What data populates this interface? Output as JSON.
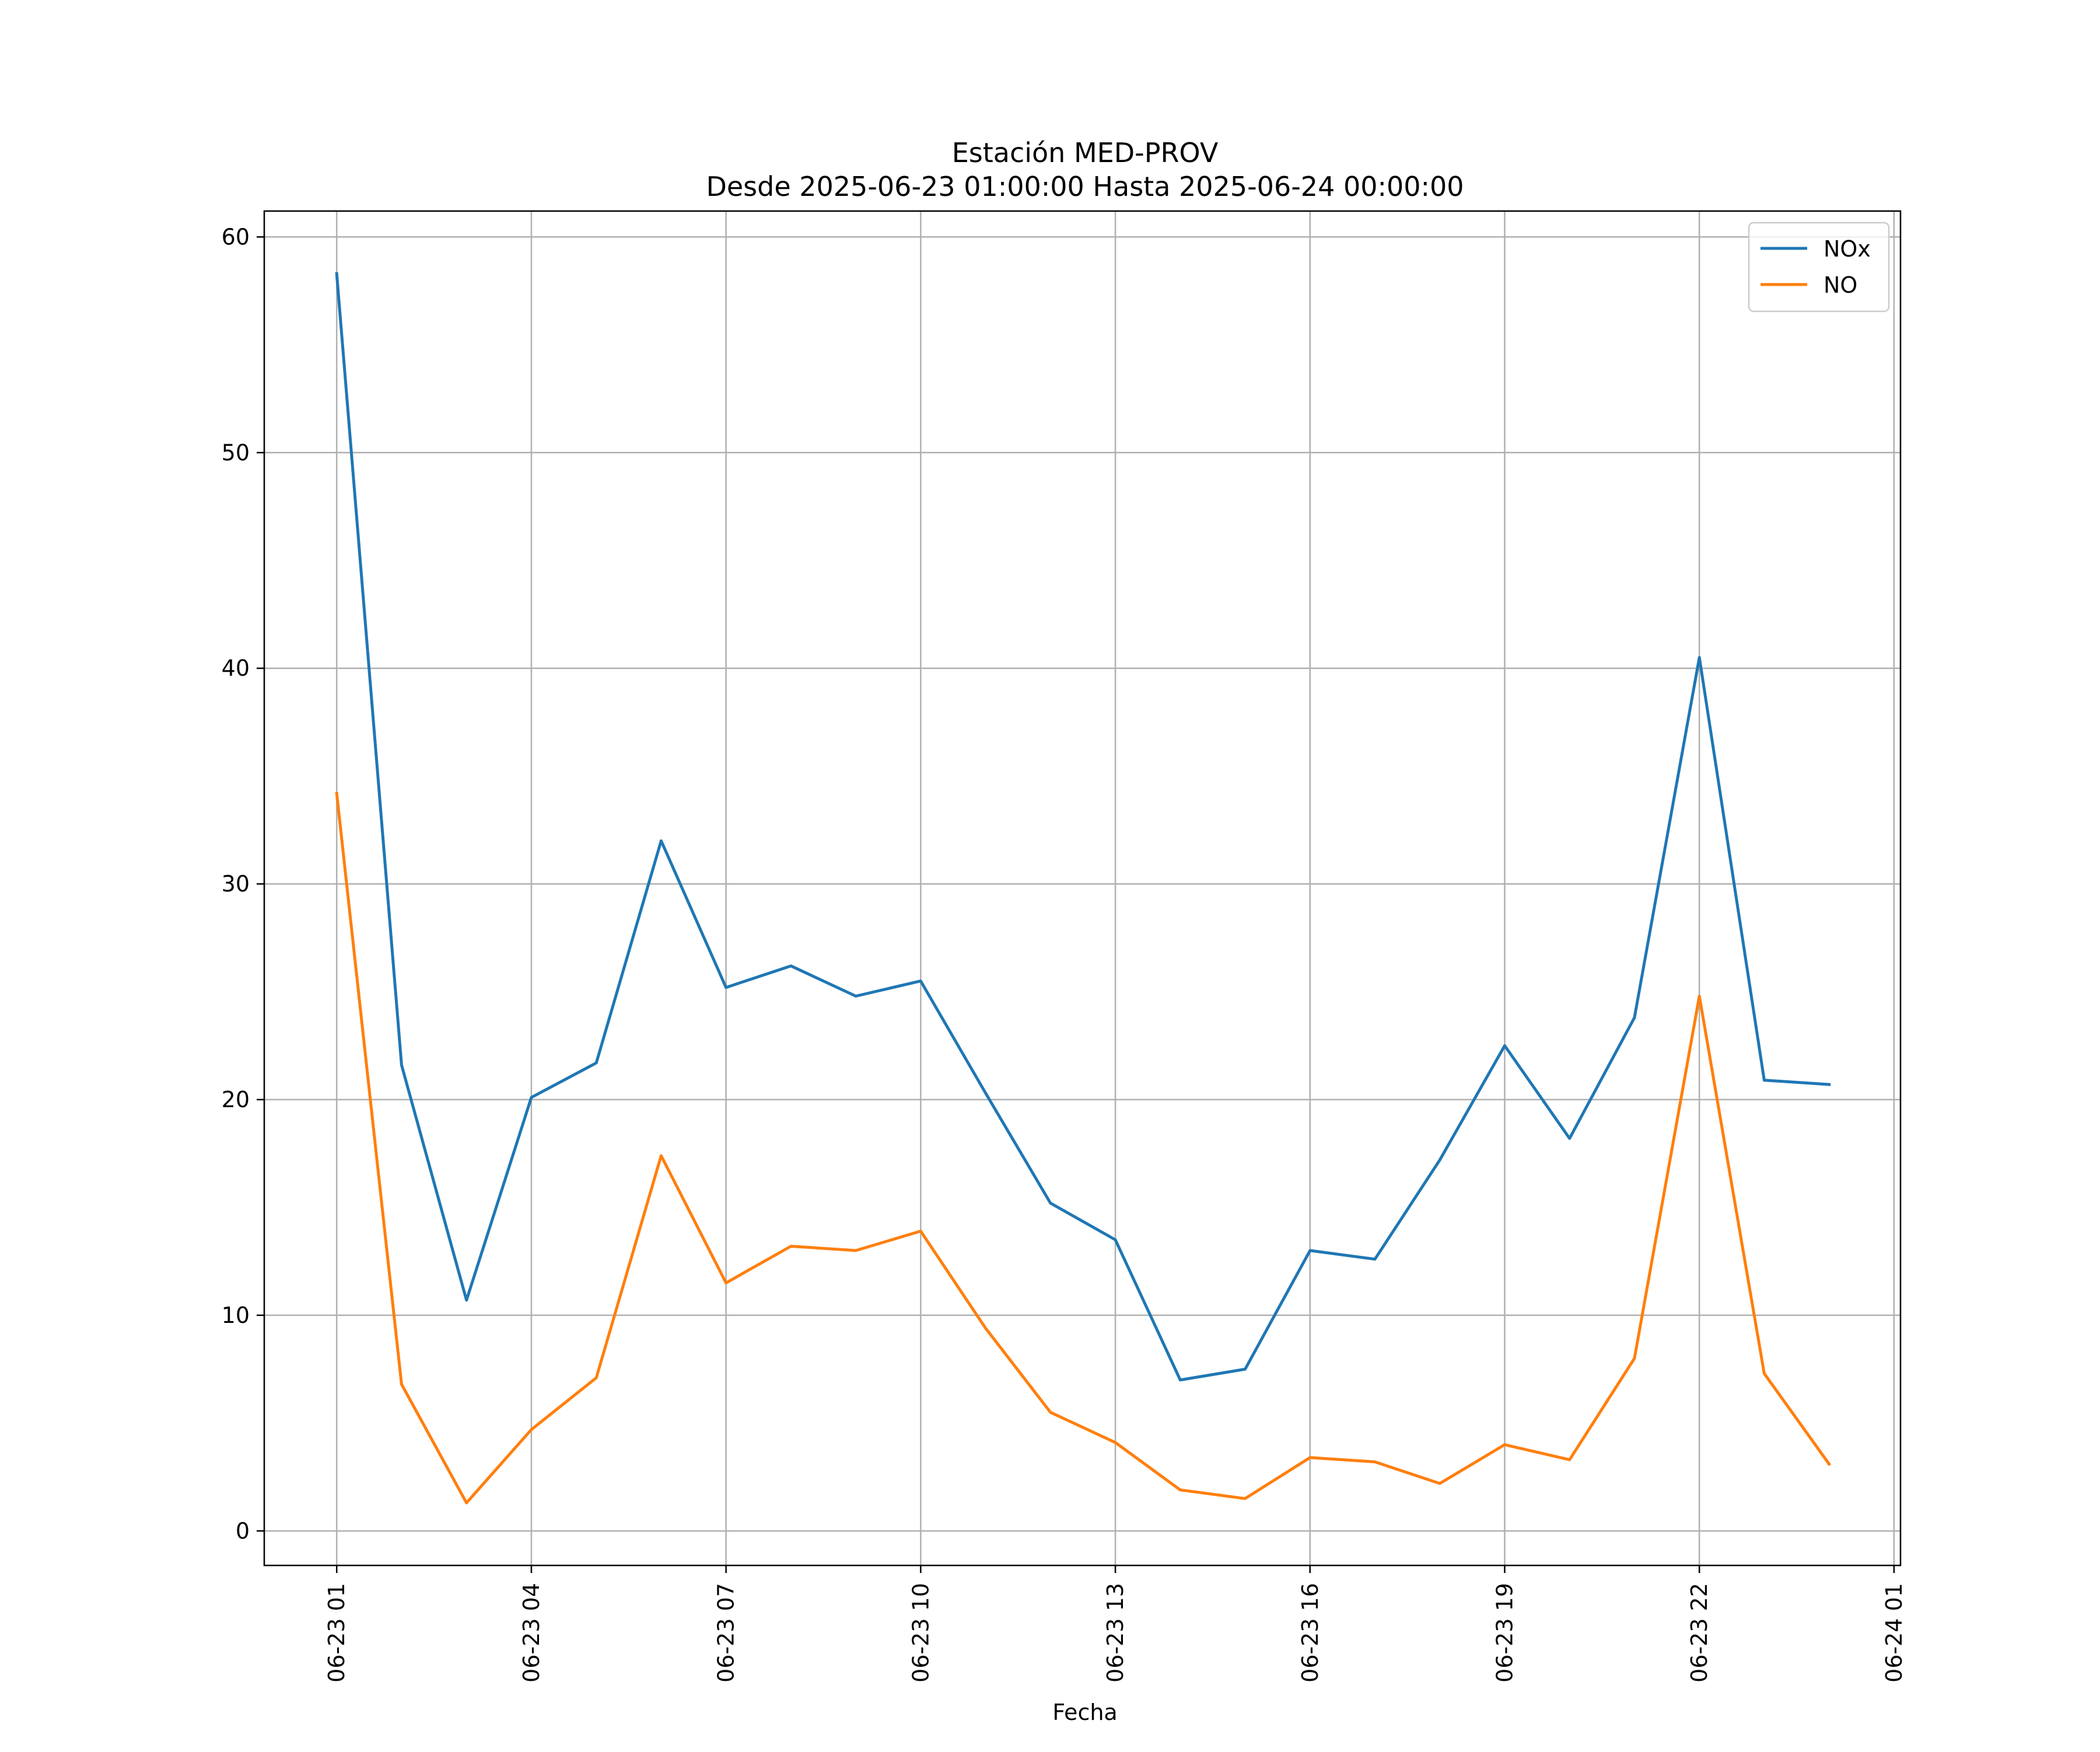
{
  "chart_data": {
    "type": "line",
    "title": "Estación MED-PROV",
    "subtitle": "Desde 2025-06-23 01:00:00 Hasta 2025-06-24 00:00:00",
    "xlabel": "Fecha",
    "ylabel": "",
    "x": [
      "2025-06-23 01:00",
      "2025-06-23 02:00",
      "2025-06-23 03:00",
      "2025-06-23 04:00",
      "2025-06-23 05:00",
      "2025-06-23 06:00",
      "2025-06-23 07:00",
      "2025-06-23 08:00",
      "2025-06-23 09:00",
      "2025-06-23 10:00",
      "2025-06-23 11:00",
      "2025-06-23 12:00",
      "2025-06-23 13:00",
      "2025-06-23 14:00",
      "2025-06-23 15:00",
      "2025-06-23 16:00",
      "2025-06-23 17:00",
      "2025-06-23 18:00",
      "2025-06-23 19:00",
      "2025-06-23 20:00",
      "2025-06-23 21:00",
      "2025-06-23 22:00",
      "2025-06-23 23:00",
      "2025-06-24 00:00"
    ],
    "x_ticks": [
      "06-23 01",
      "06-23 04",
      "06-23 07",
      "06-23 10",
      "06-23 13",
      "06-23 16",
      "06-23 19",
      "06-23 22",
      "06-24 01"
    ],
    "x_tick_values": [
      "2025-06-23 01:00",
      "2025-06-23 04:00",
      "2025-06-23 07:00",
      "2025-06-23 10:00",
      "2025-06-23 13:00",
      "2025-06-23 16:00",
      "2025-06-23 19:00",
      "2025-06-23 22:00",
      "2025-06-24 01:00"
    ],
    "xlim": [
      "2025-06-22 23:53",
      "2025-06-24 01:06"
    ],
    "y_ticks": [
      0,
      10,
      20,
      30,
      40,
      50,
      60
    ],
    "ylim": [
      -1.6,
      61.2
    ],
    "grid": true,
    "legend_position": "top-right",
    "series": [
      {
        "name": "NOx",
        "color": "#1f77b4",
        "values": [
          58.3,
          21.6,
          10.7,
          20.1,
          21.7,
          32.0,
          25.2,
          26.2,
          24.8,
          25.5,
          20.3,
          15.2,
          13.5,
          7.0,
          7.5,
          13.0,
          12.6,
          17.2,
          22.5,
          18.2,
          23.8,
          40.5,
          20.9,
          20.7
        ]
      },
      {
        "name": "NO",
        "color": "#ff7f0e",
        "values": [
          34.2,
          6.8,
          1.3,
          4.7,
          7.1,
          17.4,
          11.5,
          13.2,
          13.0,
          13.9,
          9.4,
          5.5,
          4.1,
          1.9,
          1.5,
          3.4,
          3.2,
          2.2,
          4.0,
          3.3,
          8.0,
          24.8,
          7.3,
          3.1
        ]
      }
    ]
  }
}
